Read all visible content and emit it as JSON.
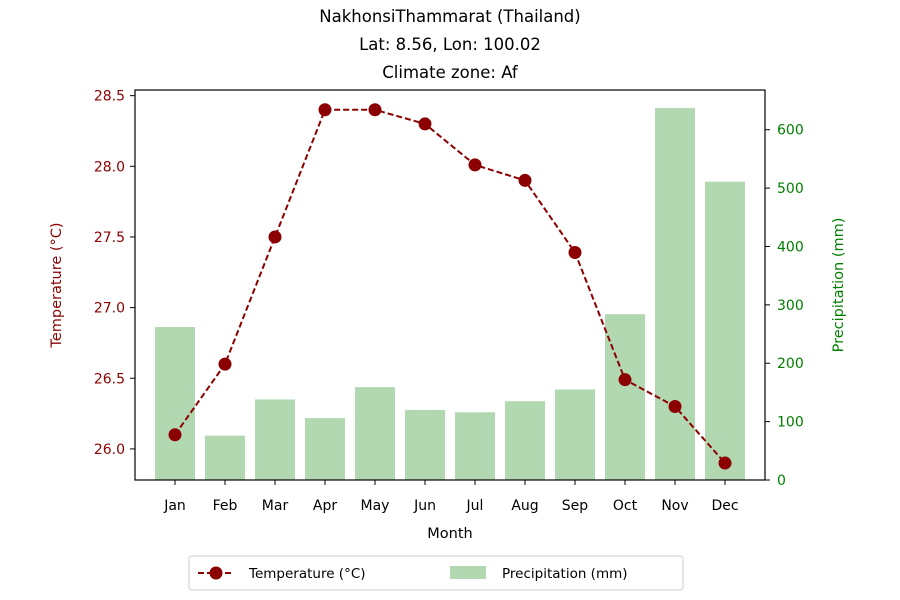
{
  "chart_data": {
    "type": "bar+line",
    "title_lines": [
      "NakhonsiThammarat (Thailand)",
      "Lat: 8.56, Lon: 100.02",
      "Climate zone: Af"
    ],
    "xlabel": "Month",
    "ylabel_left": "Temperature (°C)",
    "ylabel_right": "Precipitation (mm)",
    "categories": [
      "Jan",
      "Feb",
      "Mar",
      "Apr",
      "May",
      "Jun",
      "Jul",
      "Aug",
      "Sep",
      "Oct",
      "Nov",
      "Dec"
    ],
    "temperature": {
      "name": "Temperature (°C)",
      "values": [
        26.1,
        26.6,
        27.5,
        28.4,
        28.4,
        28.3,
        28.01,
        27.9,
        27.39,
        26.49,
        26.3,
        25.9
      ],
      "color": "#8b0000"
    },
    "precipitation": {
      "name": "Precipitation (mm)",
      "values": [
        262,
        76,
        138,
        106,
        159,
        120,
        116,
        135,
        155,
        284,
        637,
        511
      ],
      "color": "#b2d8b2"
    },
    "ylim_left": [
      25.78,
      28.54
    ],
    "ylim_right": [
      0,
      668
    ],
    "yticks_left": [
      "26.0",
      "26.5",
      "27.0",
      "27.5",
      "28.0",
      "28.5"
    ],
    "yticks_right": [
      "0",
      "100",
      "200",
      "300",
      "400",
      "500",
      "600"
    ],
    "left_axis_color": "#8b0000",
    "right_axis_color": "#008000",
    "legend_placement": "bottom-center"
  }
}
